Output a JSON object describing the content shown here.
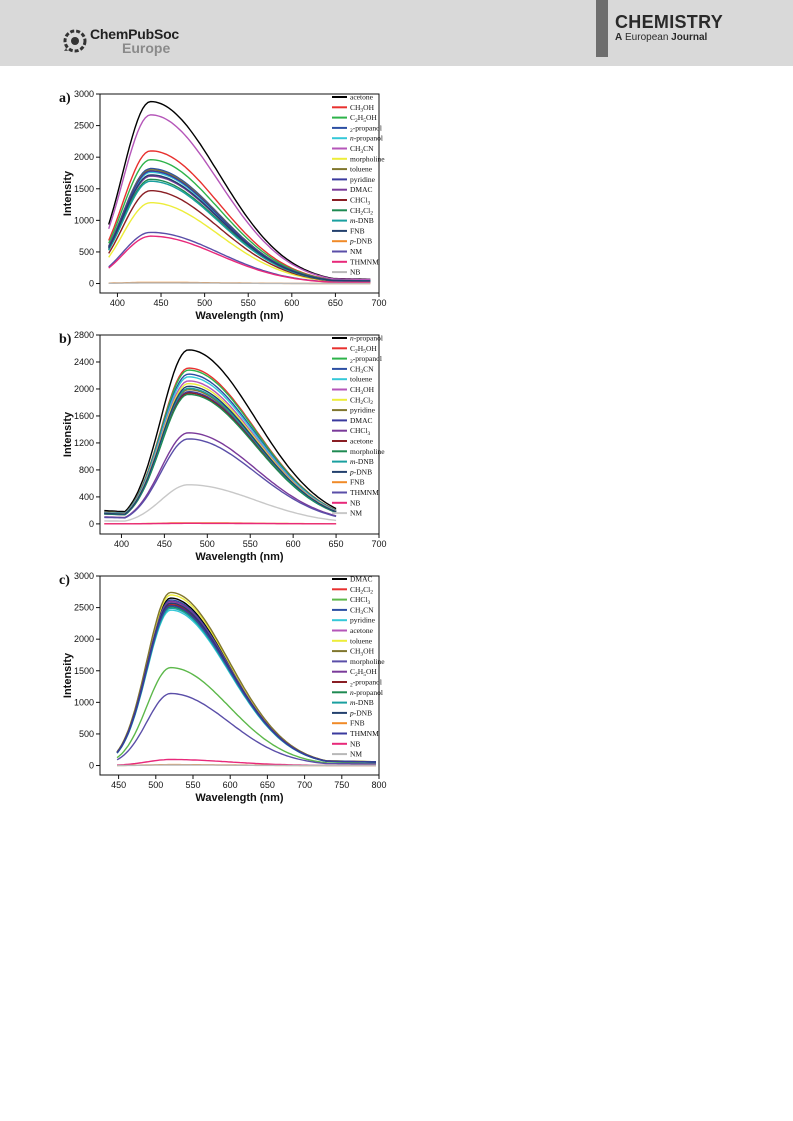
{
  "header": {
    "publisher_top": "ChemPubSoc",
    "publisher_bottom": "Europe",
    "journal_title": "CHEMISTRY",
    "journal_sub_a": "A",
    "journal_sub_b": "European",
    "journal_sub_c": "Journal"
  },
  "chart_data": [
    {
      "panel": "a)",
      "type": "line",
      "xlabel": "Wavelength (nm)",
      "ylabel": "Intensity",
      "xlim": [
        380,
        700
      ],
      "ylim": [
        -150,
        3000
      ],
      "xticks": [
        400,
        450,
        500,
        550,
        600,
        650,
        700
      ],
      "yticks": [
        0,
        500,
        1000,
        1500,
        2000,
        2500,
        3000
      ],
      "legend_position": "right",
      "x_range": [
        390,
        690
      ],
      "peak_x": 438,
      "series": [
        {
          "name": "acetone",
          "color": "#000000",
          "peak": 2880
        },
        {
          "name": "CH3OH",
          "color": "#e8312f",
          "peak": 2100
        },
        {
          "name": "C2H5OH",
          "color": "#2db34a",
          "peak": 1960
        },
        {
          "name": "2-propanol",
          "color": "#2c4fa3",
          "peak": 1820
        },
        {
          "name": "n-propanol",
          "color": "#35c8d8",
          "peak": 1760
        },
        {
          "name": "CH3CN",
          "color": "#b556b9",
          "peak": 2670
        },
        {
          "name": "morpholine",
          "color": "#eded3a",
          "peak": 1280
        },
        {
          "name": "toluene",
          "color": "#80762e",
          "peak": 1800
        },
        {
          "name": "pyridine",
          "color": "#3a3a9e",
          "peak": 1780
        },
        {
          "name": "DMAC",
          "color": "#7a3a9a",
          "peak": 1700
        },
        {
          "name": "CHCl3",
          "color": "#8a1e24",
          "peak": 1470
        },
        {
          "name": "CH2Cl2",
          "color": "#1e8a52",
          "peak": 1650
        },
        {
          "name": "m-DNB",
          "color": "#1aa0a0",
          "peak": 1620
        },
        {
          "name": "FNB",
          "color": "#23406e",
          "peak": 1720
        },
        {
          "name": "p-DNB",
          "color": "#f08a28",
          "peak": 18
        },
        {
          "name": "NM",
          "color": "#5a4ea8",
          "peak": 810
        },
        {
          "name": "THMNM",
          "color": "#e8297a",
          "peak": 750
        },
        {
          "name": "NB",
          "color": "#b8b8b8",
          "peak": 10
        }
      ]
    },
    {
      "panel": "b)",
      "type": "line",
      "xlabel": "Wavelength (nm)",
      "ylabel": "Intensity",
      "xlim": [
        375,
        700
      ],
      "ylim": [
        -150,
        2800
      ],
      "xticks": [
        400,
        450,
        500,
        550,
        600,
        650,
        700
      ],
      "yticks": [
        0,
        400,
        800,
        1200,
        1600,
        2000,
        2400,
        2800
      ],
      "legend_position": "right",
      "x_range": [
        380,
        650
      ],
      "peak_x": 478,
      "series": [
        {
          "name": "n-propanol",
          "color": "#000000",
          "peak": 2580
        },
        {
          "name": "C2H5OH",
          "color": "#e8312f",
          "peak": 2310
        },
        {
          "name": "2-propanol",
          "color": "#2db34a",
          "peak": 2280
        },
        {
          "name": "CH3CN",
          "color": "#2c4fa3",
          "peak": 2220
        },
        {
          "name": "toluene",
          "color": "#35c8d8",
          "peak": 2180
        },
        {
          "name": "CH3OH",
          "color": "#b556b9",
          "peak": 2120
        },
        {
          "name": "CH2Cl2",
          "color": "#eded3a",
          "peak": 2080
        },
        {
          "name": "pyridine",
          "color": "#80762e",
          "peak": 1990
        },
        {
          "name": "DMAC",
          "color": "#3a3a9e",
          "peak": 1960
        },
        {
          "name": "CHCl3",
          "color": "#7a3a9a",
          "peak": 1350
        },
        {
          "name": "acetone",
          "color": "#8a1e24",
          "peak": 1940
        },
        {
          "name": "morpholine",
          "color": "#1e8a52",
          "peak": 1920
        },
        {
          "name": "m-DNB",
          "color": "#1aa0a0",
          "peak": 2010
        },
        {
          "name": "p-DNB",
          "color": "#23406e",
          "peak": 2040
        },
        {
          "name": "FNB",
          "color": "#f08a28",
          "peak": 15
        },
        {
          "name": "THMNM",
          "color": "#5a4ea8",
          "peak": 1260
        },
        {
          "name": "NB",
          "color": "#e8297a",
          "peak": 8
        },
        {
          "name": "NM",
          "color": "#c8c8c8",
          "peak": 580
        }
      ]
    },
    {
      "panel": "c)",
      "type": "line",
      "xlabel": "Wavelength (nm)",
      "ylabel": "Intensity",
      "xlim": [
        425,
        800
      ],
      "ylim": [
        -150,
        3000
      ],
      "xticks": [
        450,
        500,
        550,
        600,
        650,
        700,
        750,
        800
      ],
      "yticks": [
        0,
        500,
        1000,
        1500,
        2000,
        2500,
        3000
      ],
      "legend_position": "right",
      "x_range": [
        448,
        797
      ],
      "peak_x": 520,
      "series": [
        {
          "name": "DMAC",
          "color": "#000000",
          "peak": 2650
        },
        {
          "name": "CH2Cl2",
          "color": "#e8312f",
          "peak": 2560
        },
        {
          "name": "CHCl3",
          "color": "#5cb84a",
          "peak": 1550
        },
        {
          "name": "CH3CN",
          "color": "#2c4fa3",
          "peak": 2620
        },
        {
          "name": "pyridine",
          "color": "#35c8d8",
          "peak": 2460
        },
        {
          "name": "acetone",
          "color": "#b556b9",
          "peak": 2580
        },
        {
          "name": "toluene",
          "color": "#eded3a",
          "peak": 2700
        },
        {
          "name": "CH3OH",
          "color": "#80762e",
          "peak": 2740
        },
        {
          "name": "morpholine",
          "color": "#5a4ea8",
          "peak": 1140
        },
        {
          "name": "C2H5OH",
          "color": "#7a3a9a",
          "peak": 2600
        },
        {
          "name": "2-propanol",
          "color": "#8a1e24",
          "peak": 2540
        },
        {
          "name": "n-propanol",
          "color": "#1e8a52",
          "peak": 2510
        },
        {
          "name": "m-DNB",
          "color": "#1aa0a0",
          "peak": 2490
        },
        {
          "name": "p-DNB",
          "color": "#23406e",
          "peak": 2570
        },
        {
          "name": "FNB",
          "color": "#f08a28",
          "peak": 14
        },
        {
          "name": "THMNM",
          "color": "#3a3a9e",
          "peak": 2530
        },
        {
          "name": "NB",
          "color": "#e8297a",
          "peak": 95
        },
        {
          "name": "NM",
          "color": "#b8b8b8",
          "peak": 8
        }
      ]
    }
  ]
}
